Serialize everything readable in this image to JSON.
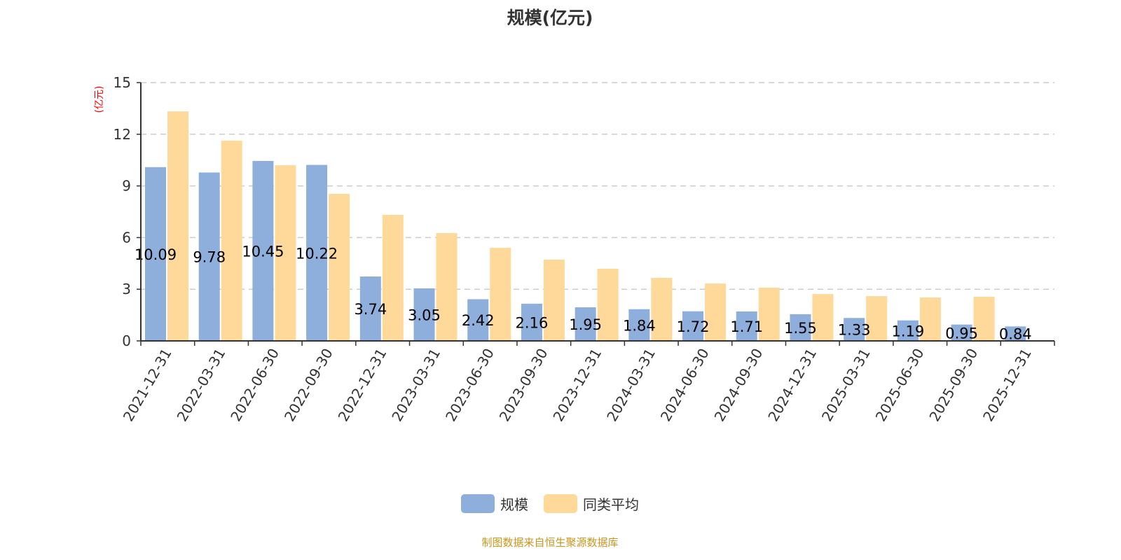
{
  "chart_data": {
    "type": "bar",
    "title": "规模(亿元)",
    "ylabel": "(亿元)",
    "xlabel": "",
    "ylim": [
      0,
      15
    ],
    "yticks": [
      0,
      3,
      6,
      9,
      12,
      15
    ],
    "grid": true,
    "legend_position": "bottom",
    "categories": [
      "2021-12-31",
      "2022-03-31",
      "2022-06-30",
      "2022-09-30",
      "2022-12-31",
      "2023-03-31",
      "2023-06-30",
      "2023-09-30",
      "2023-12-31",
      "2024-03-31",
      "2024-06-30",
      "2024-09-30",
      "2024-12-31",
      "2025-03-31",
      "2025-06-30",
      "2025-09-30",
      "2025-12-31"
    ],
    "series": [
      {
        "name": "规模",
        "color": "#8eaedb",
        "show_labels": true,
        "values": [
          10.09,
          9.78,
          10.45,
          10.22,
          3.74,
          3.05,
          2.42,
          2.16,
          1.95,
          1.84,
          1.72,
          1.71,
          1.55,
          1.33,
          1.19,
          0.95,
          0.84
        ]
      },
      {
        "name": "同类平均",
        "color": "#ffd999",
        "show_labels": false,
        "values": [
          13.33,
          11.63,
          10.2,
          8.54,
          7.32,
          6.26,
          5.41,
          4.72,
          4.19,
          3.66,
          3.33,
          3.09,
          2.72,
          2.6,
          2.52,
          2.56,
          null
        ]
      }
    ]
  },
  "source": "制图数据来自恒生聚源数据库"
}
